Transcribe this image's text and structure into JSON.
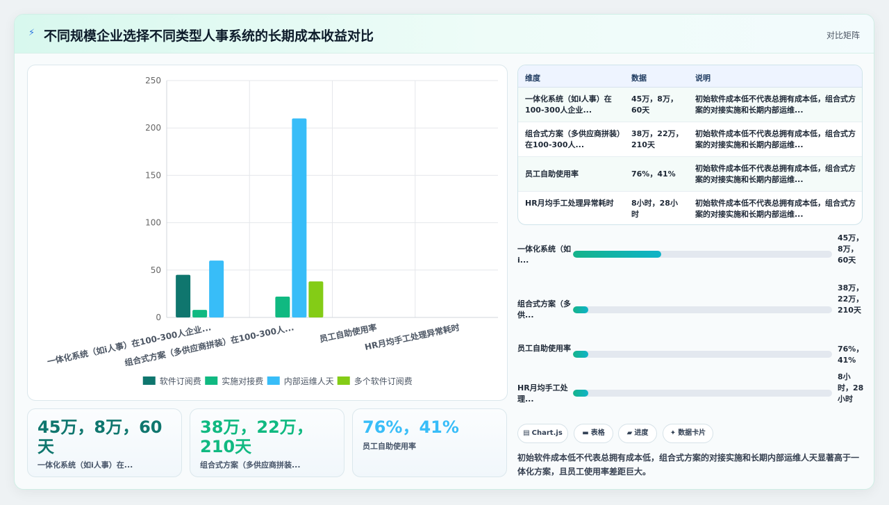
{
  "header": {
    "title": "不同规模企业选择不同类型人事系统的长期成本收益对比",
    "subtitle": "对比矩阵",
    "icon": "bolt-icon"
  },
  "chart_data": {
    "type": "bar",
    "categories": [
      "一体化系统（如i人事）在100-300人企业...",
      "组合式方案（多供应商拼装）在100-300人...",
      "员工自助使用率",
      "HR月均手工处理异常耗时"
    ],
    "series": [
      {
        "name": "软件订阅费",
        "color": "#0f766e",
        "values": [
          45,
          null,
          null,
          null
        ]
      },
      {
        "name": "实施对接费",
        "color": "#10b981",
        "values": [
          8,
          22,
          null,
          null
        ]
      },
      {
        "name": "内部运维人天",
        "color": "#38bdf8",
        "values": [
          60,
          210,
          null,
          null
        ]
      },
      {
        "name": "多个软件订阅费",
        "color": "#84cc16",
        "values": [
          null,
          38,
          null,
          null
        ]
      }
    ],
    "ylim": [
      0,
      250
    ],
    "yticks": [
      0,
      50,
      100,
      150,
      200,
      250
    ],
    "grid": true,
    "legend": "bottom"
  },
  "table": {
    "headers": [
      "维度",
      "数据",
      "说明"
    ],
    "rows": [
      [
        "一体化系统（如i人事）在100-300人企业...",
        "45万，8万，60天",
        "初始软件成本低不代表总拥有成本低，组合式方案的对接实施和长期内部运维..."
      ],
      [
        "组合式方案（多供应商拼装）在100-300人...",
        "38万，22万，210天",
        "初始软件成本低不代表总拥有成本低，组合式方案的对接实施和长期内部运维..."
      ],
      [
        "员工自助使用率",
        "76%，41%",
        "初始软件成本低不代表总拥有成本低，组合式方案的对接实施和长期内部运维..."
      ],
      [
        "HR月均手工处理异常耗时",
        "8小时，28小时",
        "初始软件成本低不代表总拥有成本低，组合式方案的对接实施和长期内部运维..."
      ]
    ]
  },
  "progress": [
    {
      "label": "一体化系统（如i...",
      "value": "45万，8万，60天",
      "fraction": 0.34
    },
    {
      "label": "组合式方案（多供...",
      "value": "38万，22万，210天",
      "fraction": 0.06
    },
    {
      "label": "员工自助使用率",
      "value": "76%，41%",
      "fraction": 0.06
    },
    {
      "label": "HR月均手工处理...",
      "value": "8小时，28小时",
      "fraction": 0.06
    }
  ],
  "tags": [
    {
      "icon": "chart-icon",
      "glyph": "▤",
      "label": "Chart.js"
    },
    {
      "icon": "table-icon",
      "glyph": "▬",
      "label": "表格"
    },
    {
      "icon": "progress-icon",
      "glyph": "▰",
      "label": "进度"
    },
    {
      "icon": "sparkle-icon",
      "glyph": "✦",
      "label": "数据卡片"
    }
  ],
  "note": "初始软件成本低不代表总拥有成本低，组合式方案的对接实施和长期内部运维人天显著高于一体化方案，且员工使用率差距巨大。",
  "kpis": [
    {
      "value": "45万，8万，60天",
      "label": "一体化系统（如i人事）在...",
      "color": "#0f766e"
    },
    {
      "value": "38万，22万，210天",
      "label": "组合式方案（多供应商拼装...",
      "color": "#10b981"
    },
    {
      "value": "76%，41%",
      "label": "员工自助使用率",
      "color": "#38bdf8"
    }
  ]
}
